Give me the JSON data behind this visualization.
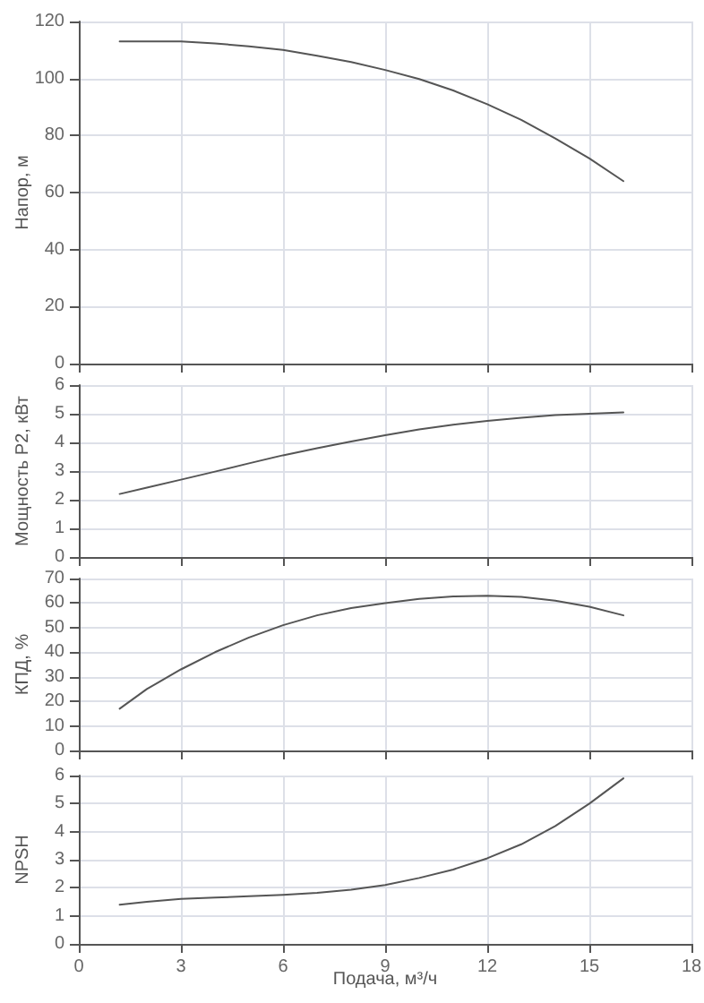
{
  "chart_data": [
    {
      "type": "line",
      "ylabel": "Напор, м",
      "x": [
        1.2,
        2,
        3,
        4,
        5,
        6,
        7,
        8,
        9,
        10,
        11,
        12,
        13,
        14,
        15,
        16
      ],
      "series": [
        {
          "color": "#555555",
          "values": [
            113,
            113,
            113,
            112.3,
            111.3,
            110,
            108,
            105.8,
            103,
            99.8,
            95.8,
            91,
            85.5,
            79,
            72,
            64
          ]
        }
      ],
      "xlim": [
        0,
        18
      ],
      "xticks": [
        0,
        3,
        6,
        9,
        12,
        15,
        18
      ],
      "ylim": [
        0,
        120
      ],
      "yticks": [
        0,
        20,
        40,
        60,
        80,
        100,
        120
      ],
      "grid": true,
      "tick_labels": "y",
      "marker": "none",
      "line_style": "solid"
    },
    {
      "type": "line",
      "ylabel": "Мощность P2, кВт",
      "x": [
        1.2,
        2,
        3,
        4,
        5,
        6,
        7,
        8,
        9,
        10,
        11,
        12,
        13,
        14,
        15,
        16
      ],
      "series": [
        {
          "color": "#555555",
          "values": [
            2.2,
            2.42,
            2.7,
            2.98,
            3.27,
            3.55,
            3.8,
            4.03,
            4.25,
            4.45,
            4.62,
            4.75,
            4.86,
            4.95,
            5.0,
            5.05
          ]
        }
      ],
      "xlim": [
        0,
        18
      ],
      "xticks": [
        0,
        3,
        6,
        9,
        12,
        15,
        18
      ],
      "ylim": [
        0,
        6
      ],
      "yticks": [
        0,
        1,
        2,
        3,
        4,
        5,
        6
      ],
      "grid": true,
      "tick_labels": "y",
      "marker": "none",
      "line_style": "solid"
    },
    {
      "type": "line",
      "ylabel": "КПД, %",
      "x": [
        1.2,
        2,
        3,
        4,
        5,
        6,
        7,
        8,
        9,
        10,
        11,
        12,
        13,
        14,
        15,
        16
      ],
      "series": [
        {
          "color": "#555555",
          "values": [
            17,
            25,
            33,
            40,
            46,
            51,
            55,
            58,
            60,
            61.7,
            62.7,
            63,
            62.5,
            61,
            58.5,
            55
          ]
        }
      ],
      "xlim": [
        0,
        18
      ],
      "xticks": [
        0,
        3,
        6,
        9,
        12,
        15,
        18
      ],
      "ylim": [
        0,
        70
      ],
      "yticks": [
        0,
        10,
        20,
        30,
        40,
        50,
        60,
        70
      ],
      "grid": true,
      "tick_labels": "y",
      "marker": "none",
      "line_style": "solid"
    },
    {
      "type": "line",
      "xlabel": "Подача, м³/ч",
      "ylabel": "NPSH",
      "x": [
        1.2,
        2,
        3,
        4,
        5,
        6,
        7,
        8,
        9,
        10,
        11,
        12,
        13,
        14,
        15,
        16
      ],
      "series": [
        {
          "color": "#555555",
          "values": [
            1.4,
            1.5,
            1.6,
            1.65,
            1.7,
            1.75,
            1.82,
            1.93,
            2.1,
            2.35,
            2.65,
            3.05,
            3.55,
            4.2,
            5.0,
            5.9
          ]
        }
      ],
      "xlim": [
        0,
        18
      ],
      "xticks": [
        0,
        3,
        6,
        9,
        12,
        15,
        18
      ],
      "ylim": [
        0,
        6
      ],
      "yticks": [
        0,
        1,
        2,
        3,
        4,
        5,
        6
      ],
      "grid": true,
      "marker": "none",
      "line_style": "solid"
    }
  ]
}
